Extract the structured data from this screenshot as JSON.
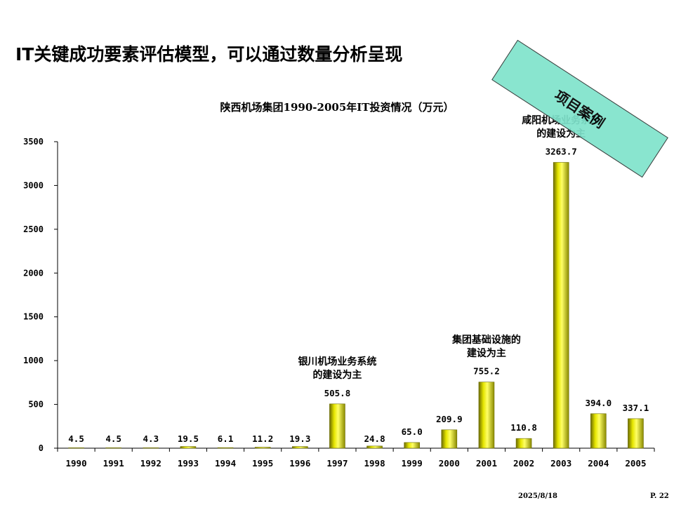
{
  "slide": {
    "title": "IT关键成功要素评估模型，可以通过数量分析呈现",
    "stamp": "项目案例",
    "date": "2025/8/18",
    "page": "P. 22"
  },
  "chart_data": {
    "type": "bar",
    "title": "陕西机场集团1990-2005年IT投资情况（万元）",
    "xlabel": "",
    "ylabel": "",
    "ylim": [
      0,
      3500
    ],
    "yticks": [
      0,
      500,
      1000,
      1500,
      2000,
      2500,
      3000,
      3500
    ],
    "grid": false,
    "categories": [
      "1990",
      "1991",
      "1992",
      "1993",
      "1994",
      "1995",
      "1996",
      "1997",
      "1998",
      "1999",
      "2000",
      "2001",
      "2002",
      "2003",
      "2004",
      "2005"
    ],
    "values": [
      4.5,
      4.5,
      4.3,
      19.5,
      6.1,
      11.2,
      19.3,
      505.8,
      24.8,
      65.0,
      209.9,
      755.2,
      110.8,
      3263.7,
      394.0,
      337.1
    ],
    "value_labels": [
      "4.5",
      "4.5",
      "4.3",
      "19.5",
      "6.1",
      "11.2",
      "19.3",
      "505.8",
      "24.8",
      "65.0",
      "209.9",
      "755.2",
      "110.8",
      "3263.7",
      "394.0",
      "337.1"
    ],
    "bar_color": "#e6e600",
    "annotations": [
      {
        "category": "1997",
        "lines": [
          "银川机场业务系统",
          "的建设为主"
        ]
      },
      {
        "category": "2001",
        "lines": [
          "集团基础设施的",
          "建设为主"
        ]
      },
      {
        "category": "2003",
        "lines": [
          "咸阳机场业务系统",
          "的建设为主"
        ]
      }
    ]
  }
}
